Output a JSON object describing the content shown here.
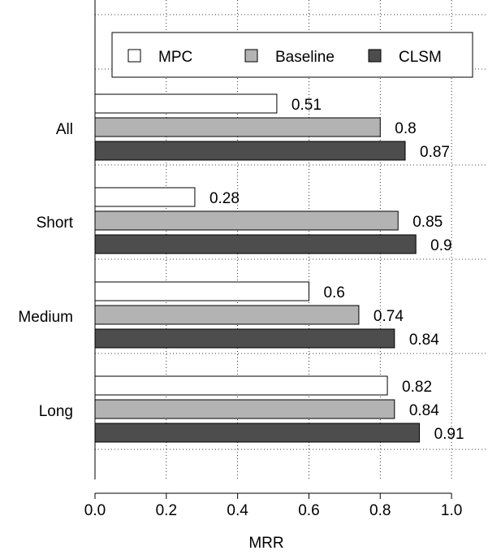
{
  "chart_data": {
    "type": "bar",
    "orientation": "horizontal",
    "categories": [
      "All",
      "Short",
      "Medium",
      "Long"
    ],
    "series": [
      {
        "name": "MPC",
        "values": [
          0.51,
          0.28,
          0.6,
          0.82
        ],
        "color": "#ffffff"
      },
      {
        "name": "Baseline",
        "values": [
          0.8,
          0.85,
          0.74,
          0.84
        ],
        "color": "#b3b3b3"
      },
      {
        "name": "CLSM",
        "values": [
          0.87,
          0.9,
          0.84,
          0.91
        ],
        "color": "#4d4d4d"
      }
    ],
    "value_labels": [
      [
        "0.51",
        "0.28",
        "0.6",
        "0.82"
      ],
      [
        "0.8",
        "0.85",
        "0.74",
        "0.84"
      ],
      [
        "0.87",
        "0.9",
        "0.84",
        "0.91"
      ]
    ],
    "xlabel": "MRR",
    "ylabel": "",
    "xlim": [
      0.0,
      1.1
    ],
    "xticks": [
      0.0,
      0.2,
      0.4,
      0.6,
      0.8,
      1.0
    ],
    "xtick_labels": [
      "0.0",
      "0.2",
      "0.4",
      "0.6",
      "0.8",
      "1.0"
    ],
    "grid": true,
    "legend_position": "top"
  }
}
